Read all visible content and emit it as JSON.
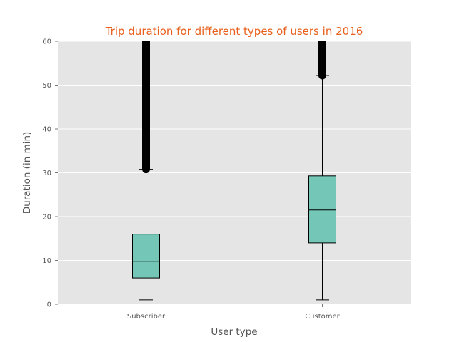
{
  "chart_data": {
    "type": "box",
    "title": "Trip duration for different types of users in 2016",
    "xlabel": "User type",
    "ylabel": "Duration (in min)",
    "ylim": [
      0,
      60
    ],
    "yticks": [
      0,
      10,
      20,
      30,
      40,
      50,
      60
    ],
    "grid": true,
    "colors": {
      "title": "#e8601c",
      "box_fill": "#74c6b6",
      "plot_background": "#e5e5e5",
      "axis_text": "#555555",
      "lines": "#000000",
      "grid": "#ffffff"
    },
    "categories": [
      "Subscriber",
      "Customer"
    ],
    "boxes": [
      {
        "category": "Subscriber",
        "whisker_low": 1,
        "q1": 6,
        "median": 9.8,
        "q3": 16,
        "whisker_high": 30.8,
        "outliers_range": [
          30.8,
          60
        ]
      },
      {
        "category": "Customer",
        "whisker_low": 1,
        "q1": 14,
        "median": 21.5,
        "q3": 29.3,
        "whisker_high": 52.2,
        "outliers_range": [
          52.2,
          60
        ]
      }
    ]
  }
}
